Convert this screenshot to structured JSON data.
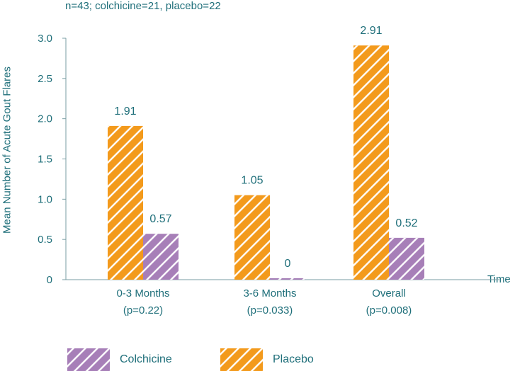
{
  "chart_data": {
    "type": "bar",
    "subtitle": "n=43; colchicine=21, placebo=22",
    "xlabel": "Time",
    "ylabel": "Mean Number of Acute Gout Flares",
    "ylim": [
      0,
      3.0
    ],
    "yticks": [
      "0",
      "0.5",
      "1.0",
      "1.5",
      "2.0",
      "2.5",
      "3.0"
    ],
    "categories": [
      {
        "line1": "0-3 Months",
        "line2": "(p=0.22)"
      },
      {
        "line1": "3-6 Months",
        "line2": "(p=0.033)"
      },
      {
        "line1": "Overall",
        "line2": "(p=0.008)"
      }
    ],
    "series": [
      {
        "name": "Placebo",
        "color": "#f39a1c",
        "values": [
          1.91,
          1.05,
          2.91
        ],
        "labels": [
          "1.91",
          "1.05",
          "2.91"
        ]
      },
      {
        "name": "Colchicine",
        "color": "#a77fb8",
        "values": [
          0.57,
          0,
          0.52
        ],
        "labels": [
          "0.57",
          "0",
          "0.52"
        ]
      }
    ],
    "grid": false,
    "legend_position": "bottom",
    "legend_order": [
      "Colchicine",
      "Placebo"
    ],
    "colors": {
      "text": "#1f6f7a",
      "axis": "#7a9ea3"
    }
  }
}
